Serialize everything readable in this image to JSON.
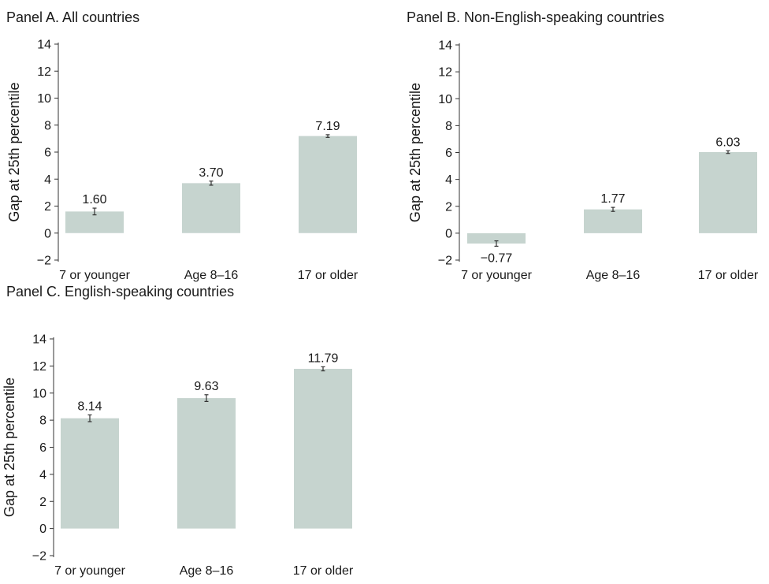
{
  "chart_data": [
    {
      "type": "bar",
      "title": "Panel A. All countries",
      "xlabel": "",
      "ylabel": "Gap at 25th percentile",
      "ylim": [
        -2,
        14
      ],
      "yticks": [
        -2,
        0,
        2,
        4,
        6,
        8,
        10,
        12,
        14
      ],
      "categories": [
        "7 or younger",
        "Age 8–16",
        "17 or older"
      ],
      "values": [
        1.6,
        3.7,
        7.19
      ],
      "value_labels": [
        "1.60",
        "3.70",
        "7.19"
      ],
      "error_bars": [
        0.25,
        0.15,
        0.1
      ],
      "grid": false,
      "colors": {
        "bar": "#c6d4cf",
        "text": "#1a1a1a"
      }
    },
    {
      "type": "bar",
      "title": "Panel B. Non-English-speaking countries",
      "xlabel": "",
      "ylabel": "Gap at 25th percentile",
      "ylim": [
        -2,
        14
      ],
      "yticks": [
        -2,
        0,
        2,
        4,
        6,
        8,
        10,
        12,
        14
      ],
      "categories": [
        "7 or younger",
        "Age 8–16",
        "17 or older"
      ],
      "values": [
        -0.77,
        1.77,
        6.03
      ],
      "value_labels": [
        "−0.77",
        "1.77",
        "6.03"
      ],
      "error_bars": [
        0.2,
        0.15,
        0.1
      ],
      "grid": false,
      "colors": {
        "bar": "#c6d4cf",
        "text": "#1a1a1a"
      }
    },
    {
      "type": "bar",
      "title": "Panel C. English-speaking countries",
      "xlabel": "",
      "ylabel": "Gap at 25th percentile",
      "ylim": [
        -2,
        14
      ],
      "yticks": [
        -2,
        0,
        2,
        4,
        6,
        8,
        10,
        12,
        14
      ],
      "categories": [
        "7 or younger",
        "Age 8–16",
        "17 or older"
      ],
      "values": [
        8.14,
        9.63,
        11.79
      ],
      "value_labels": [
        "8.14",
        "9.63",
        "11.79"
      ],
      "error_bars": [
        0.25,
        0.25,
        0.15
      ],
      "grid": false,
      "colors": {
        "bar": "#c6d4cf",
        "text": "#1a1a1a"
      }
    }
  ]
}
